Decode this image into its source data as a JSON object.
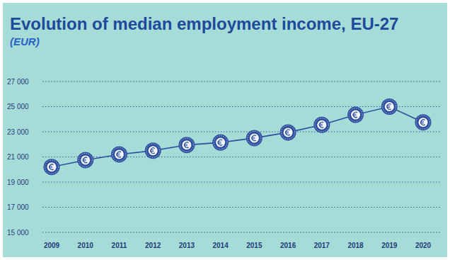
{
  "chart_data": {
    "type": "line",
    "title": "Evolution of median employment income, EU-27",
    "subtitle": "(EUR)",
    "categories": [
      "2009",
      "2010",
      "2011",
      "2012",
      "2013",
      "2014",
      "2015",
      "2016",
      "2017",
      "2018",
      "2019",
      "2020"
    ],
    "values": [
      20200,
      20750,
      21200,
      21500,
      21950,
      22150,
      22500,
      22950,
      23550,
      24350,
      25000,
      23750
    ],
    "color": "#2d4f9e",
    "marker": "circle",
    "ylim": [
      15000,
      27000
    ],
    "yticks": [
      {
        "value": 15000,
        "label": "15 000"
      },
      {
        "value": 17000,
        "label": "17 000"
      },
      {
        "value": 19000,
        "label": "19 000"
      },
      {
        "value": 21000,
        "label": "21 000"
      },
      {
        "value": 23000,
        "label": "23 000"
      },
      {
        "value": 25000,
        "label": "25 000"
      },
      {
        "value": 27000,
        "label": "27 000"
      }
    ],
    "grid": true
  }
}
